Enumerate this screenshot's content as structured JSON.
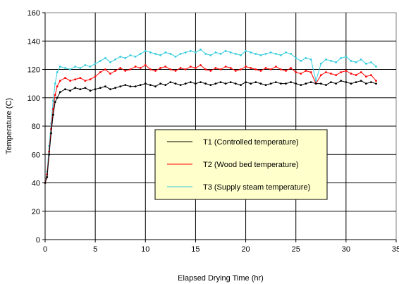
{
  "chart_data": {
    "type": "line",
    "title": "",
    "xlabel": "Elapsed Drying Time (hr)",
    "ylabel": "Temperature (C)",
    "xlim": [
      0,
      35
    ],
    "ylim": [
      0,
      160
    ],
    "xticks": [
      0,
      5,
      10,
      15,
      20,
      25,
      30,
      35
    ],
    "yticks": [
      0,
      20,
      40,
      60,
      80,
      100,
      120,
      140,
      160
    ],
    "grid": true,
    "legend_position": "center-right",
    "series": [
      {
        "name": "T1 (Controlled temperature)",
        "color": "#000000",
        "marker": "diamond",
        "x": [
          0,
          0.2,
          0.4,
          0.6,
          0.8,
          1,
          1.2,
          1.5,
          2,
          2.5,
          3,
          3.5,
          4,
          4.5,
          5,
          5.5,
          6,
          6.5,
          7,
          7.5,
          8,
          8.5,
          9,
          9.5,
          10,
          10.5,
          11,
          11.5,
          12,
          12.5,
          13,
          13.5,
          14,
          14.5,
          15,
          15.5,
          16,
          16.5,
          17,
          17.5,
          18,
          18.5,
          19,
          19.5,
          20,
          20.5,
          21,
          21.5,
          22,
          22.5,
          23,
          23.5,
          24,
          24.5,
          25,
          25.5,
          26,
          26.5,
          27,
          27.5,
          28,
          28.5,
          29,
          29.5,
          30,
          30.5,
          31,
          31.5,
          32,
          32.5,
          33
        ],
        "y": [
          40,
          44,
          60,
          75,
          88,
          97,
          100,
          104,
          106,
          105,
          107,
          106,
          107,
          105,
          106,
          107,
          108,
          106,
          107,
          108,
          109,
          108,
          108,
          109,
          110,
          109,
          108,
          110,
          109,
          111,
          110,
          109,
          110,
          111,
          110,
          111,
          110,
          109,
          110,
          111,
          110,
          111,
          110,
          109,
          111,
          110,
          111,
          110,
          109,
          110,
          111,
          110,
          110,
          111,
          110,
          109,
          110,
          111,
          110,
          110,
          109,
          111,
          110,
          112,
          111,
          110,
          111,
          112,
          110,
          111,
          110
        ]
      },
      {
        "name": "T2 (Wood bed temperature)",
        "color": "#ff0000",
        "marker": "dot",
        "x": [
          0,
          0.2,
          0.4,
          0.6,
          0.8,
          1,
          1.2,
          1.5,
          2,
          2.5,
          3,
          3.5,
          4,
          4.5,
          5,
          5.5,
          6,
          6.5,
          7,
          7.5,
          8,
          8.5,
          9,
          9.5,
          10,
          10.5,
          11,
          11.5,
          12,
          12.5,
          13,
          13.5,
          14,
          14.5,
          15,
          15.5,
          16,
          16.5,
          17,
          17.5,
          18,
          18.5,
          19,
          19.5,
          20,
          20.5,
          21,
          21.5,
          22,
          22.5,
          23,
          23.5,
          24,
          24.5,
          25,
          25.5,
          26,
          26.5,
          27,
          27.5,
          28,
          28.5,
          29,
          29.5,
          30,
          30.5,
          31,
          31.5,
          32,
          32.5,
          33
        ],
        "y": [
          40,
          46,
          62,
          78,
          92,
          102,
          108,
          112,
          114,
          112,
          113,
          114,
          112,
          113,
          115,
          118,
          120,
          117,
          119,
          121,
          119,
          120,
          122,
          121,
          123,
          120,
          119,
          121,
          122,
          120,
          119,
          121,
          120,
          122,
          121,
          123,
          120,
          119,
          121,
          120,
          122,
          121,
          119,
          120,
          122,
          121,
          120,
          119,
          121,
          120,
          122,
          120,
          119,
          121,
          118,
          117,
          119,
          118,
          110,
          116,
          118,
          117,
          116,
          118,
          119,
          117,
          116,
          118,
          115,
          116,
          112
        ]
      },
      {
        "name": "T3 (Supply steam temperature)",
        "color": "#33ccdd",
        "marker": "triangle",
        "x": [
          0,
          0.2,
          0.4,
          0.6,
          0.8,
          1,
          1.2,
          1.5,
          2,
          2.5,
          3,
          3.5,
          4,
          4.5,
          5,
          5.5,
          6,
          6.5,
          7,
          7.5,
          8,
          8.5,
          9,
          9.5,
          10,
          10.5,
          11,
          11.5,
          12,
          12.5,
          13,
          13.5,
          14,
          14.5,
          15,
          15.5,
          16,
          16.5,
          17,
          17.5,
          18,
          18.5,
          19,
          19.5,
          20,
          20.5,
          21,
          21.5,
          22,
          22.5,
          23,
          23.5,
          24,
          24.5,
          25,
          25.5,
          26,
          26.5,
          27,
          27.5,
          28,
          28.5,
          29,
          29.5,
          30,
          30.5,
          31,
          31.5,
          32,
          32.5,
          33
        ],
        "y": [
          40,
          48,
          66,
          82,
          98,
          110,
          118,
          122,
          121,
          120,
          122,
          121,
          123,
          122,
          124,
          126,
          128,
          125,
          127,
          129,
          128,
          130,
          129,
          131,
          133,
          132,
          131,
          130,
          132,
          131,
          129,
          131,
          132,
          133,
          132,
          134,
          131,
          130,
          132,
          131,
          133,
          132,
          131,
          130,
          133,
          132,
          131,
          130,
          131,
          132,
          131,
          130,
          132,
          131,
          128,
          126,
          128,
          127,
          112,
          124,
          127,
          126,
          125,
          128,
          129,
          126,
          125,
          127,
          124,
          125,
          122
        ]
      }
    ]
  }
}
